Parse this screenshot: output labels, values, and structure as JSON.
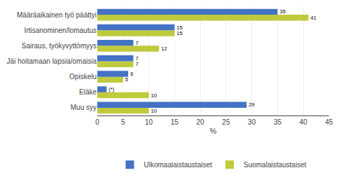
{
  "chart_data": {
    "type": "bar",
    "orientation": "horizontal",
    "categories": [
      "Muu syy",
      "Eläke",
      "Opiskelu",
      "Jäi hoitamaan lapsia/omaisia",
      "Sairaus, työkyvyttömyys",
      "Irtisanominen/lomautus",
      "Määräaikainen työ päättyi"
    ],
    "series": [
      {
        "name": "Ulkomaalaistaustaiset",
        "color": "#4472C4",
        "values": [
          29,
          1.8,
          6,
          7,
          7,
          15,
          35
        ],
        "value_labels": [
          "29",
          "(*)",
          "6",
          "7",
          "7",
          "15",
          "35"
        ]
      },
      {
        "name": "Suomalaistaustaiset",
        "color": "#BFCA3C",
        "values": [
          10,
          10,
          5,
          7,
          12,
          15,
          41
        ]
      }
    ],
    "xlabel": "%",
    "xlim": [
      0,
      45
    ],
    "xticks": [
      0,
      5,
      10,
      15,
      20,
      25,
      30,
      35,
      40,
      45
    ],
    "data_labels": true,
    "grid": true,
    "legend": "bottom"
  }
}
